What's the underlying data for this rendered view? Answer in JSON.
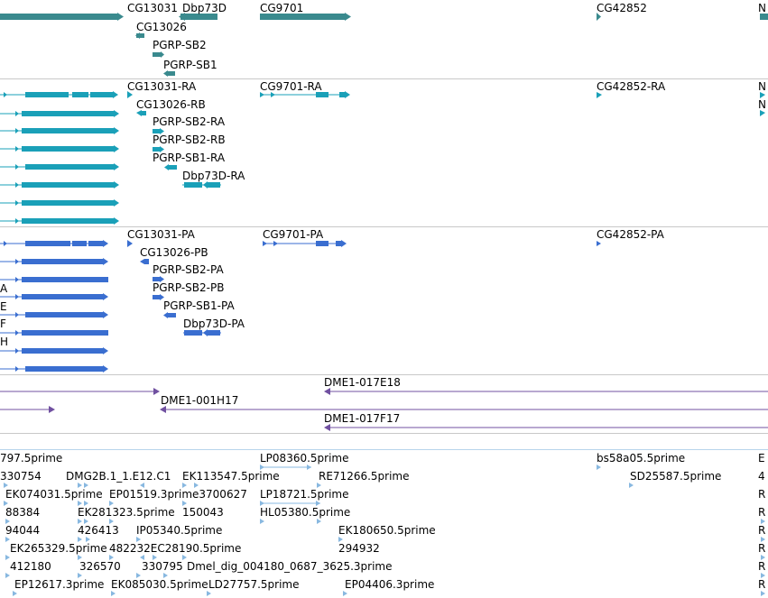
{
  "gene_track": {
    "labels": [
      "CG13031",
      "Dbp73D",
      "CG9701",
      "CG42852",
      "N",
      "CG13026",
      "PGRP-SB2",
      "PGRP-SB1"
    ],
    "color": "#3a8a8e"
  },
  "transcript_track_ra": {
    "labels": [
      "CG13031-RA",
      "CG9701-RA",
      "CG42852-RA",
      "N",
      "CG13026-RB",
      "N",
      "PGRP-SB2-RA",
      "PGRP-SB2-RB",
      "PGRP-SB1-RA",
      "Dbp73D-RA"
    ],
    "color": "#1aa0b8"
  },
  "protein_track_pa": {
    "labels": [
      "CG13031-PA",
      "CG9701-PA",
      "CG42852-PA",
      "CG13026-PB",
      "A",
      "PGRP-SB2-PA",
      "E",
      "PGRP-SB2-PB",
      "F",
      "PGRP-SB1-PA",
      "H",
      "Dbp73D-PA"
    ],
    "color": "#3a6ed0"
  },
  "clone_track": {
    "labels": [
      "DME1-017E18",
      "DME1-001H17",
      "DME1-017F17"
    ],
    "color": "#7050a0"
  },
  "est_track": {
    "labels": [
      "797.5prime",
      "LP08360.5prime",
      "bs58a05.5prime",
      "E",
      "330754",
      "DMG2B.1_1.E12.C1",
      "EK113547.5prime",
      "RE71266.5prime",
      "SD25587.5prime",
      "4",
      "EK074031.5prime",
      "EP01519.3prime3700627",
      "LP18721.5prime",
      "R",
      "88384",
      "EK281323.5prime",
      "150043",
      "HL05380.5prime",
      "R",
      "94044",
      "426413",
      "IP05340.5prime",
      "EK180650.5prime",
      "R",
      "EK265329.5prime",
      "482232EC28190.5prime",
      "294932",
      "R",
      "412180",
      "326570",
      "330795",
      "Dmel_dig_004180_0687_3625.3prime",
      "R",
      "EP12617.3prime",
      "EK085030.5prime",
      "LD27757.5prime",
      "EP04406.3prime",
      "R"
    ],
    "color": "#88b8e0"
  }
}
